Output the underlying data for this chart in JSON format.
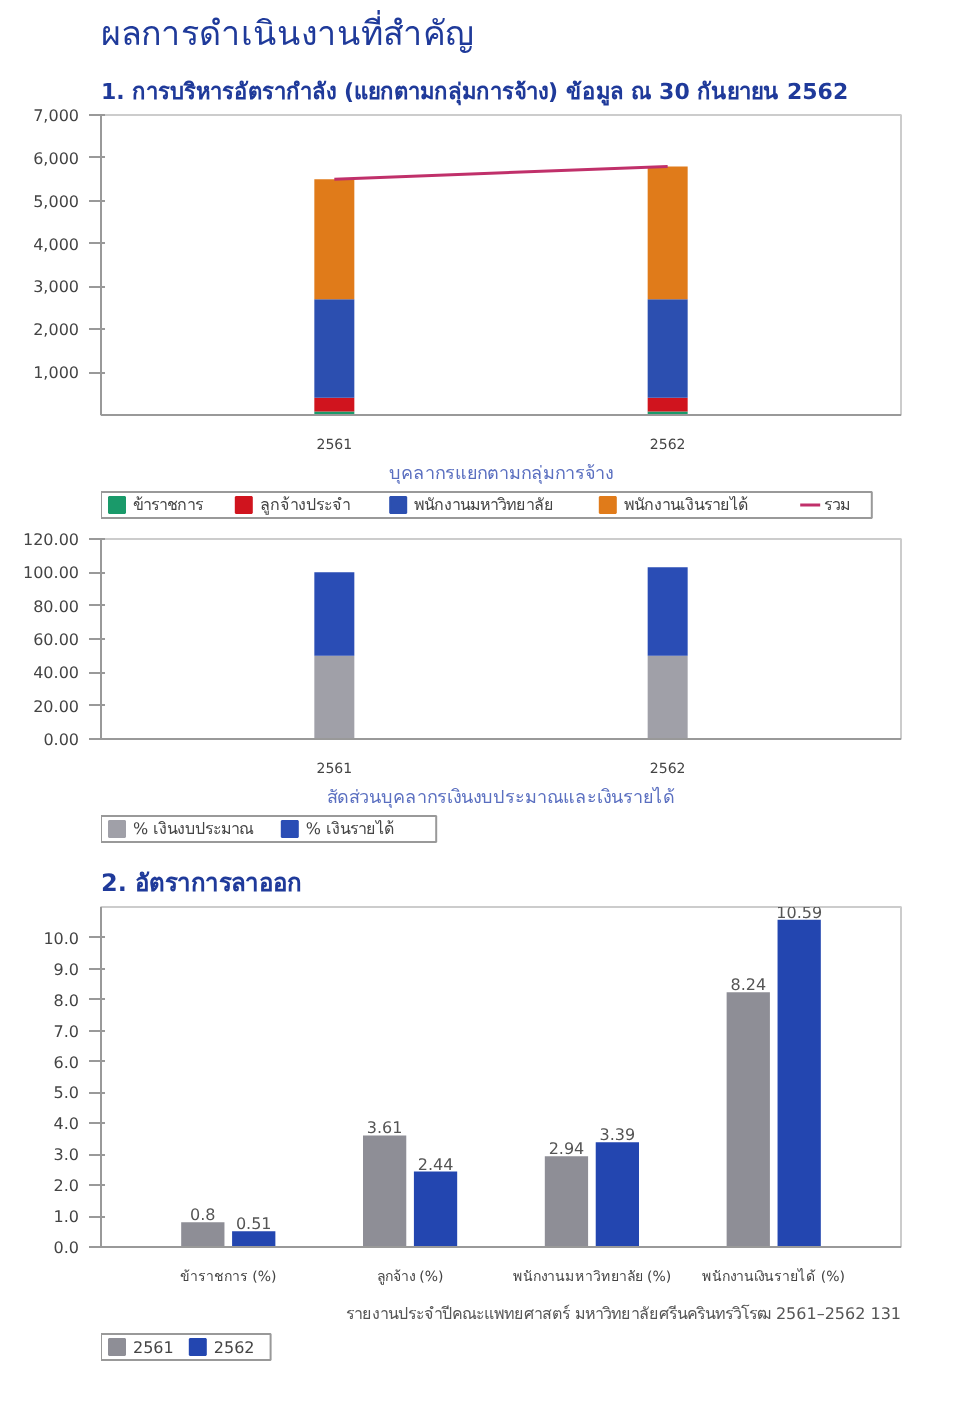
{
  "chart_data": [
    {
      "type": "bar",
      "title": "ผลการดำเนินงานที่สำคัญ",
      "subtitle": "1. การบริหารอัตรากำลัง (แยกตามกลุ่มการจ้าง) ข้อมูล ณ 30 กันยายน 2562",
      "xlabel": "บุคลากรแยกตามกลุ่มการจ้าง",
      "categories": [
        "2561",
        "2562"
      ],
      "stacked": true,
      "legend": "bottom",
      "ylim": [
        0,
        7000
      ],
      "yticks": [
        {
          "value": 1000,
          "label": "1,000"
        },
        {
          "value": 2000,
          "label": "2,000"
        },
        {
          "value": 3000,
          "label": "3,000"
        },
        {
          "value": 4000,
          "label": "4,000"
        },
        {
          "value": 5000,
          "label": "5,000"
        },
        {
          "value": 6000,
          "label": "6,000"
        },
        {
          "value": 7000,
          "label": "7,000"
        }
      ],
      "series": [
        {
          "name": "ข้าราชการ",
          "color": "#1a9a6a",
          "values": [
            80,
            80
          ]
        },
        {
          "name": "ลูกจ้างประจำ",
          "color": "#d0141e",
          "values": [
            320,
            320
          ]
        },
        {
          "name": "พนักงานมหาวิทยาลัย",
          "color": "#2c4fb0",
          "values": [
            2300,
            2300
          ]
        },
        {
          "name": "พนักงานเงินรายได้",
          "color": "#e07b1a",
          "values": [
            2800,
            3100
          ]
        },
        {
          "name": "รวม",
          "type": "line",
          "color": "#c0306a",
          "values": [
            5500,
            5800
          ]
        }
      ]
    },
    {
      "type": "bar",
      "xlabel": "สัดส่วนบุคลากรเงินงบประมาณและเงินรายได้",
      "categories": [
        "2561",
        "2562"
      ],
      "stacked": true,
      "legend": "bottom",
      "ylim": [
        0,
        120
      ],
      "yticks": [
        {
          "value": 0,
          "label": "0.00"
        },
        {
          "value": 20,
          "label": "20.00"
        },
        {
          "value": 40,
          "label": "40.00"
        },
        {
          "value": 60,
          "label": "60.00"
        },
        {
          "value": 80,
          "label": "80.00"
        },
        {
          "value": 100,
          "label": "100.00"
        },
        {
          "value": 120,
          "label": "120.00"
        }
      ],
      "series": [
        {
          "name": "% เงินงบประมาณ",
          "color": "#a0a0a8",
          "values": [
            50,
            50
          ]
        },
        {
          "name": "% เงินรายได้",
          "color": "#2a4db5",
          "values": [
            50,
            53
          ]
        }
      ]
    },
    {
      "type": "bar",
      "title": "2. อัตราการลาออก",
      "categories": [
        "ข้าราชการ (%)",
        "ลูกจ้าง (%)",
        "พนักงานมหาวิทยาลัย (%)",
        "พนักงานเงินรายได้ (%)"
      ],
      "legend": "bottom",
      "data_labels": true,
      "ylim": [
        0,
        11
      ],
      "yticks": [
        {
          "value": 0,
          "label": "0.0"
        },
        {
          "value": 1,
          "label": "1.0"
        },
        {
          "value": 2,
          "label": "2.0"
        },
        {
          "value": 3,
          "label": "3.0"
        },
        {
          "value": 4,
          "label": "4.0"
        },
        {
          "value": 5,
          "label": "5.0"
        },
        {
          "value": 6,
          "label": "6.0"
        },
        {
          "value": 7,
          "label": "7.0"
        },
        {
          "value": 8,
          "label": "8.0"
        },
        {
          "value": 9,
          "label": "9.0"
        },
        {
          "value": 10,
          "label": "10.0"
        }
      ],
      "series": [
        {
          "name": "2561",
          "color": "#8e8e96",
          "values": [
            0.8,
            3.61,
            2.94,
            8.24
          ]
        },
        {
          "name": "2562",
          "color": "#2346b0",
          "values": [
            0.51,
            2.44,
            3.39,
            10.59
          ]
        }
      ],
      "annotations": [
        "รายงานประจำปีคณะแพทยศาสตร์ มหาวิทยาลัยศรีนครินทรวิโรฒ 2561–2562 131"
      ]
    }
  ]
}
